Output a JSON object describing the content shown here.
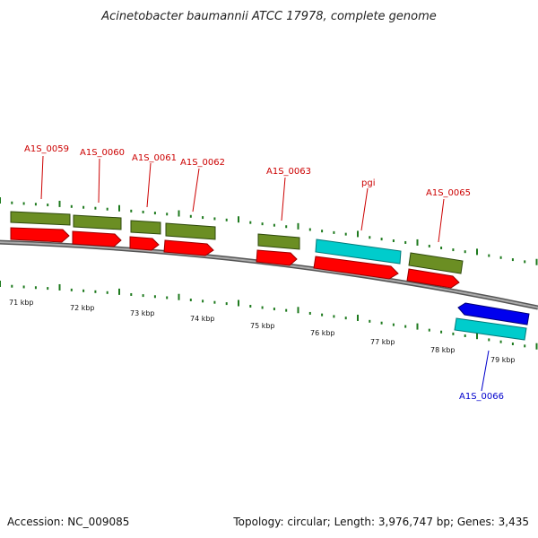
{
  "title": "Acinetobacter baumannii ATCC 17978, complete genome",
  "footer": {
    "accession": "Accession: NC_009085",
    "summary": "Topology: circular; Length: 3,976,747 bp; Genes: 3,435"
  },
  "kbp_labels": [
    "71 kbp",
    "72 kbp",
    "73 kbp",
    "74 kbp",
    "75 kbp",
    "76 kbp",
    "77 kbp",
    "78 kbp",
    "79 kbp"
  ],
  "gene_labels": [
    {
      "text": "A1S_0059",
      "strand": "forward"
    },
    {
      "text": "A1S_0060",
      "strand": "forward"
    },
    {
      "text": "A1S_0061",
      "strand": "forward"
    },
    {
      "text": "A1S_0062",
      "strand": "forward"
    },
    {
      "text": "A1S_0063",
      "strand": "forward"
    },
    {
      "text": "pgi",
      "strand": "forward"
    },
    {
      "text": "A1S_0065",
      "strand": "forward"
    },
    {
      "text": "A1S_0066",
      "strand": "reverse"
    }
  ],
  "colors": {
    "forward_label": "#cc0000",
    "reverse_label": "#0000cc",
    "cds": "#ff0000",
    "gene_olive": "#6b8e23",
    "gene_cyan": "#00cccc",
    "reverse_cds": "#0000ee",
    "tick": "#1e7a1e",
    "backbone": "#777777"
  }
}
